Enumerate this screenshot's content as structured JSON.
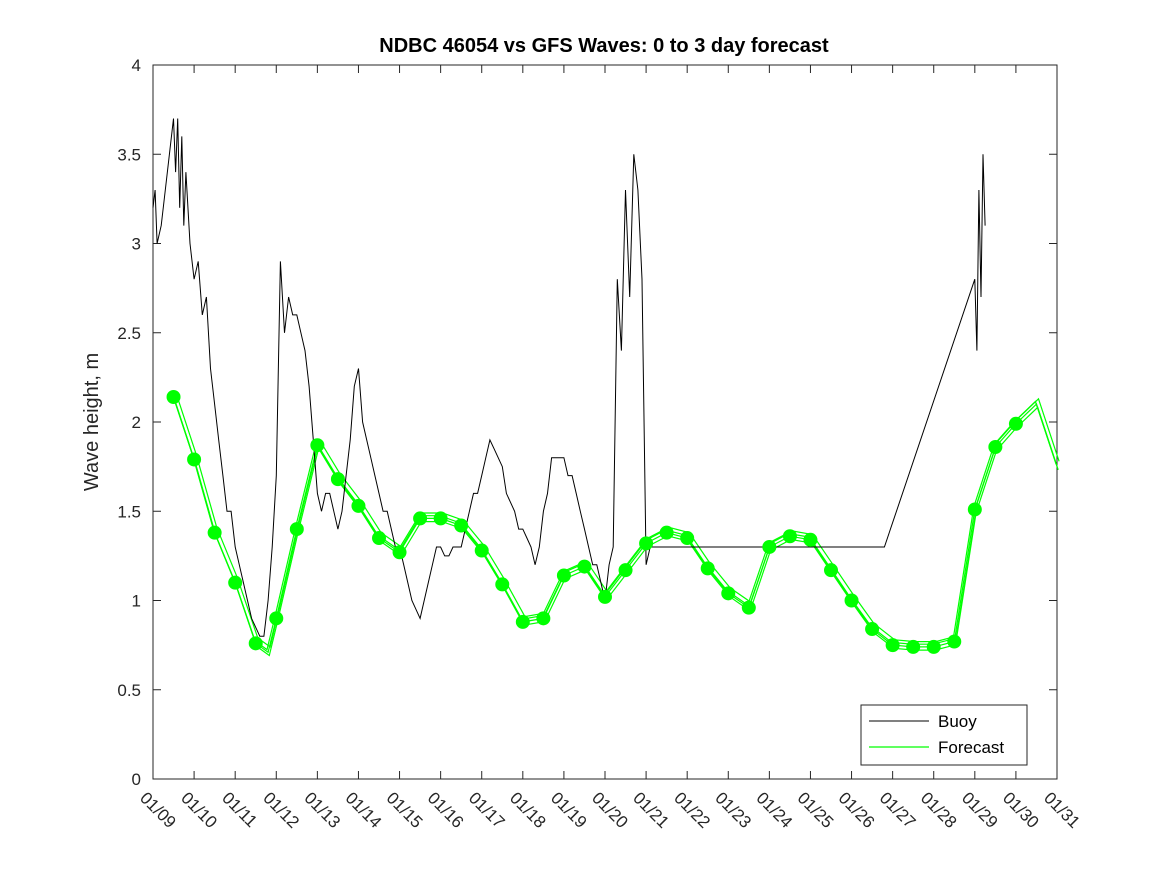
{
  "chart_data": {
    "type": "line",
    "title": "NDBC 46054 vs GFS Waves: 0 to 3 day forecast",
    "xlabel": "",
    "ylabel": "Wave height, m",
    "ylim": [
      0,
      4
    ],
    "yticks": [
      0,
      0.5,
      1,
      1.5,
      2,
      2.5,
      3,
      3.5,
      4
    ],
    "ytick_labels": [
      "0",
      "0.5",
      "1",
      "1.5",
      "2",
      "2.5",
      "3",
      "3.5",
      "4"
    ],
    "xlim": [
      0,
      22
    ],
    "xtick_labels": [
      "01/09",
      "01/10",
      "01/11",
      "01/12",
      "01/13",
      "01/14",
      "01/15",
      "01/16",
      "01/17",
      "01/18",
      "01/19",
      "01/20",
      "01/21",
      "01/22",
      "01/23",
      "01/24",
      "01/25",
      "01/26",
      "01/27",
      "01/28",
      "01/29",
      "01/30",
      "01/31"
    ],
    "legend": {
      "position": "bottom-right",
      "entries": [
        "Buoy",
        "Forecast"
      ]
    },
    "series": [
      {
        "name": "Buoy",
        "color": "#000000",
        "x": [
          0.0,
          0.05,
          0.1,
          0.2,
          0.3,
          0.4,
          0.5,
          0.55,
          0.6,
          0.65,
          0.7,
          0.75,
          0.8,
          0.9,
          1.0,
          1.1,
          1.2,
          1.3,
          1.4,
          1.5,
          1.6,
          1.7,
          1.8,
          1.9,
          2.0,
          2.1,
          2.2,
          2.3,
          2.4,
          2.5,
          2.6,
          2.7,
          2.8,
          2.9,
          3.0,
          3.1,
          3.2,
          3.3,
          3.4,
          3.5,
          3.6,
          3.7,
          3.8,
          3.9,
          4.0,
          4.1,
          4.2,
          4.3,
          4.4,
          4.5,
          4.6,
          4.7,
          4.8,
          4.9,
          5.0,
          5.1,
          5.2,
          5.3,
          5.4,
          5.5,
          5.6,
          5.7,
          5.8,
          5.9,
          6.0,
          6.1,
          6.2,
          6.3,
          6.4,
          6.5,
          6.6,
          6.7,
          6.8,
          6.9,
          7.0,
          7.1,
          7.2,
          7.3,
          7.4,
          7.5,
          7.6,
          7.7,
          7.8,
          7.9,
          8.0,
          8.1,
          8.2,
          8.3,
          8.4,
          8.5,
          8.6,
          8.7,
          8.8,
          8.9,
          9.0,
          9.1,
          9.2,
          9.3,
          9.4,
          9.5,
          9.6,
          9.7,
          9.8,
          9.9,
          10.0,
          10.1,
          10.2,
          10.3,
          10.4,
          10.5,
          10.6,
          10.7,
          10.8,
          10.9,
          11.0,
          11.1,
          11.2,
          11.3,
          11.4,
          11.5,
          11.6,
          11.7,
          11.8,
          11.9,
          12.0,
          12.1,
          12.2,
          12.3,
          12.4,
          12.5,
          12.6,
          12.7,
          12.8,
          12.9,
          13.0,
          13.1,
          13.2,
          13.3,
          13.4,
          13.5,
          13.6,
          13.7,
          13.8,
          13.9,
          14.0,
          14.1,
          14.2,
          14.3,
          14.4,
          14.5,
          14.6,
          14.7,
          14.8,
          14.9,
          15.0,
          15.1,
          15.2,
          15.3,
          15.4,
          15.5,
          15.6,
          15.7,
          15.8,
          15.9,
          16.0,
          16.1,
          16.2,
          16.3,
          16.4,
          16.5,
          16.6,
          16.7,
          16.8,
          16.9,
          17.0,
          17.1,
          17.2,
          17.3,
          17.4,
          17.5,
          17.6,
          17.7,
          17.8,
          20.0,
          20.05,
          20.1,
          20.15,
          20.2,
          20.25
        ],
        "y": [
          3.2,
          3.3,
          3.0,
          3.1,
          3.3,
          3.5,
          3.7,
          3.4,
          3.7,
          3.2,
          3.6,
          3.1,
          3.4,
          3.0,
          2.8,
          2.9,
          2.6,
          2.7,
          2.3,
          2.1,
          1.9,
          1.7,
          1.5,
          1.5,
          1.3,
          1.2,
          1.1,
          1.0,
          0.9,
          0.85,
          0.8,
          0.8,
          1.0,
          1.3,
          1.7,
          2.9,
          2.5,
          2.7,
          2.6,
          2.6,
          2.5,
          2.4,
          2.2,
          1.9,
          1.6,
          1.5,
          1.6,
          1.6,
          1.5,
          1.4,
          1.5,
          1.7,
          1.9,
          2.2,
          2.3,
          2.0,
          1.9,
          1.8,
          1.7,
          1.6,
          1.5,
          1.5,
          1.4,
          1.3,
          1.3,
          1.2,
          1.1,
          1.0,
          0.95,
          0.9,
          1.0,
          1.1,
          1.2,
          1.3,
          1.3,
          1.25,
          1.25,
          1.3,
          1.3,
          1.3,
          1.4,
          1.5,
          1.6,
          1.6,
          1.7,
          1.8,
          1.9,
          1.85,
          1.8,
          1.75,
          1.6,
          1.55,
          1.5,
          1.4,
          1.4,
          1.35,
          1.3,
          1.2,
          1.3,
          1.5,
          1.6,
          1.8,
          1.8,
          1.8,
          1.8,
          1.7,
          1.7,
          1.6,
          1.5,
          1.4,
          1.3,
          1.2,
          1.2,
          1.1,
          1.0,
          1.2,
          1.3,
          2.8,
          2.4,
          3.3,
          2.7,
          3.5,
          3.3,
          2.8,
          1.2,
          1.3,
          1.3,
          1.3,
          1.3,
          1.3,
          1.3,
          1.3,
          1.3,
          1.3,
          1.3,
          1.3,
          1.3,
          1.3,
          1.3,
          1.3,
          1.3,
          1.3,
          1.3,
          1.3,
          1.3,
          1.3,
          1.3,
          1.3,
          1.3,
          1.3,
          1.3,
          1.3,
          1.3,
          1.3,
          1.3,
          1.3,
          1.3,
          1.3,
          1.3,
          1.3,
          1.3,
          1.3,
          1.3,
          1.3,
          1.3,
          1.3,
          1.3,
          1.3,
          1.3,
          1.3,
          1.3,
          1.3,
          1.3,
          1.3,
          1.3,
          1.3,
          1.3,
          1.3,
          1.3,
          1.3,
          1.3,
          1.3,
          1.3,
          2.8,
          2.4,
          3.3,
          2.7,
          3.5,
          3.1
        ]
      },
      {
        "name": "Forecast",
        "color": "#00ff00",
        "x": [
          0.5,
          1.0,
          1.5,
          2.0,
          2.5,
          2.8,
          3.0,
          3.5,
          4.0,
          4.5,
          5.0,
          5.5,
          6.0,
          6.5,
          7.0,
          7.5,
          8.0,
          8.5,
          9.0,
          9.5,
          10.0,
          10.5,
          11.0,
          11.5,
          12.0,
          12.5,
          13.0,
          13.5,
          14.0,
          14.5,
          15.0,
          15.5,
          16.0,
          16.5,
          17.0,
          17.5,
          18.0,
          18.5,
          19.0,
          19.5,
          20.0,
          20.5,
          21.0,
          21.5,
          22.0
        ],
        "y": [
          2.14,
          1.79,
          1.38,
          1.1,
          0.76,
          0.71,
          0.9,
          1.4,
          1.87,
          1.68,
          1.53,
          1.35,
          1.27,
          1.46,
          1.46,
          1.42,
          1.28,
          1.09,
          0.88,
          0.9,
          1.14,
          1.19,
          1.02,
          1.17,
          1.32,
          1.38,
          1.35,
          1.18,
          1.04,
          0.96,
          1.3,
          1.36,
          1.34,
          1.17,
          1.0,
          0.84,
          0.75,
          0.74,
          0.74,
          0.77,
          1.51,
          1.86,
          1.99,
          2.1,
          1.75
        ]
      },
      {
        "name": "Forecast markers",
        "color": "#00ff00",
        "x": [
          0.5,
          1.0,
          1.5,
          2.0,
          2.5,
          3.0,
          3.5,
          4.0,
          4.5,
          5.0,
          5.5,
          6.0,
          6.5,
          7.0,
          7.5,
          8.0,
          8.5,
          9.0,
          9.5,
          10.0,
          10.5,
          11.0,
          11.5,
          12.0,
          12.5,
          13.0,
          13.5,
          14.0,
          14.5,
          15.0,
          15.5,
          16.0,
          16.5,
          17.0,
          17.5,
          18.0,
          18.5,
          19.0,
          19.5,
          20.0,
          20.5,
          21.0
        ],
        "y": [
          2.14,
          1.79,
          1.38,
          1.1,
          0.76,
          0.9,
          1.4,
          1.87,
          1.68,
          1.53,
          1.35,
          1.27,
          1.46,
          1.46,
          1.42,
          1.28,
          1.09,
          0.88,
          0.9,
          1.14,
          1.19,
          1.02,
          1.17,
          1.32,
          1.38,
          1.35,
          1.18,
          1.04,
          0.96,
          1.3,
          1.36,
          1.34,
          1.17,
          1.0,
          0.84,
          0.75,
          0.74,
          0.74,
          0.77,
          1.51,
          1.86,
          1.99
        ]
      }
    ]
  }
}
